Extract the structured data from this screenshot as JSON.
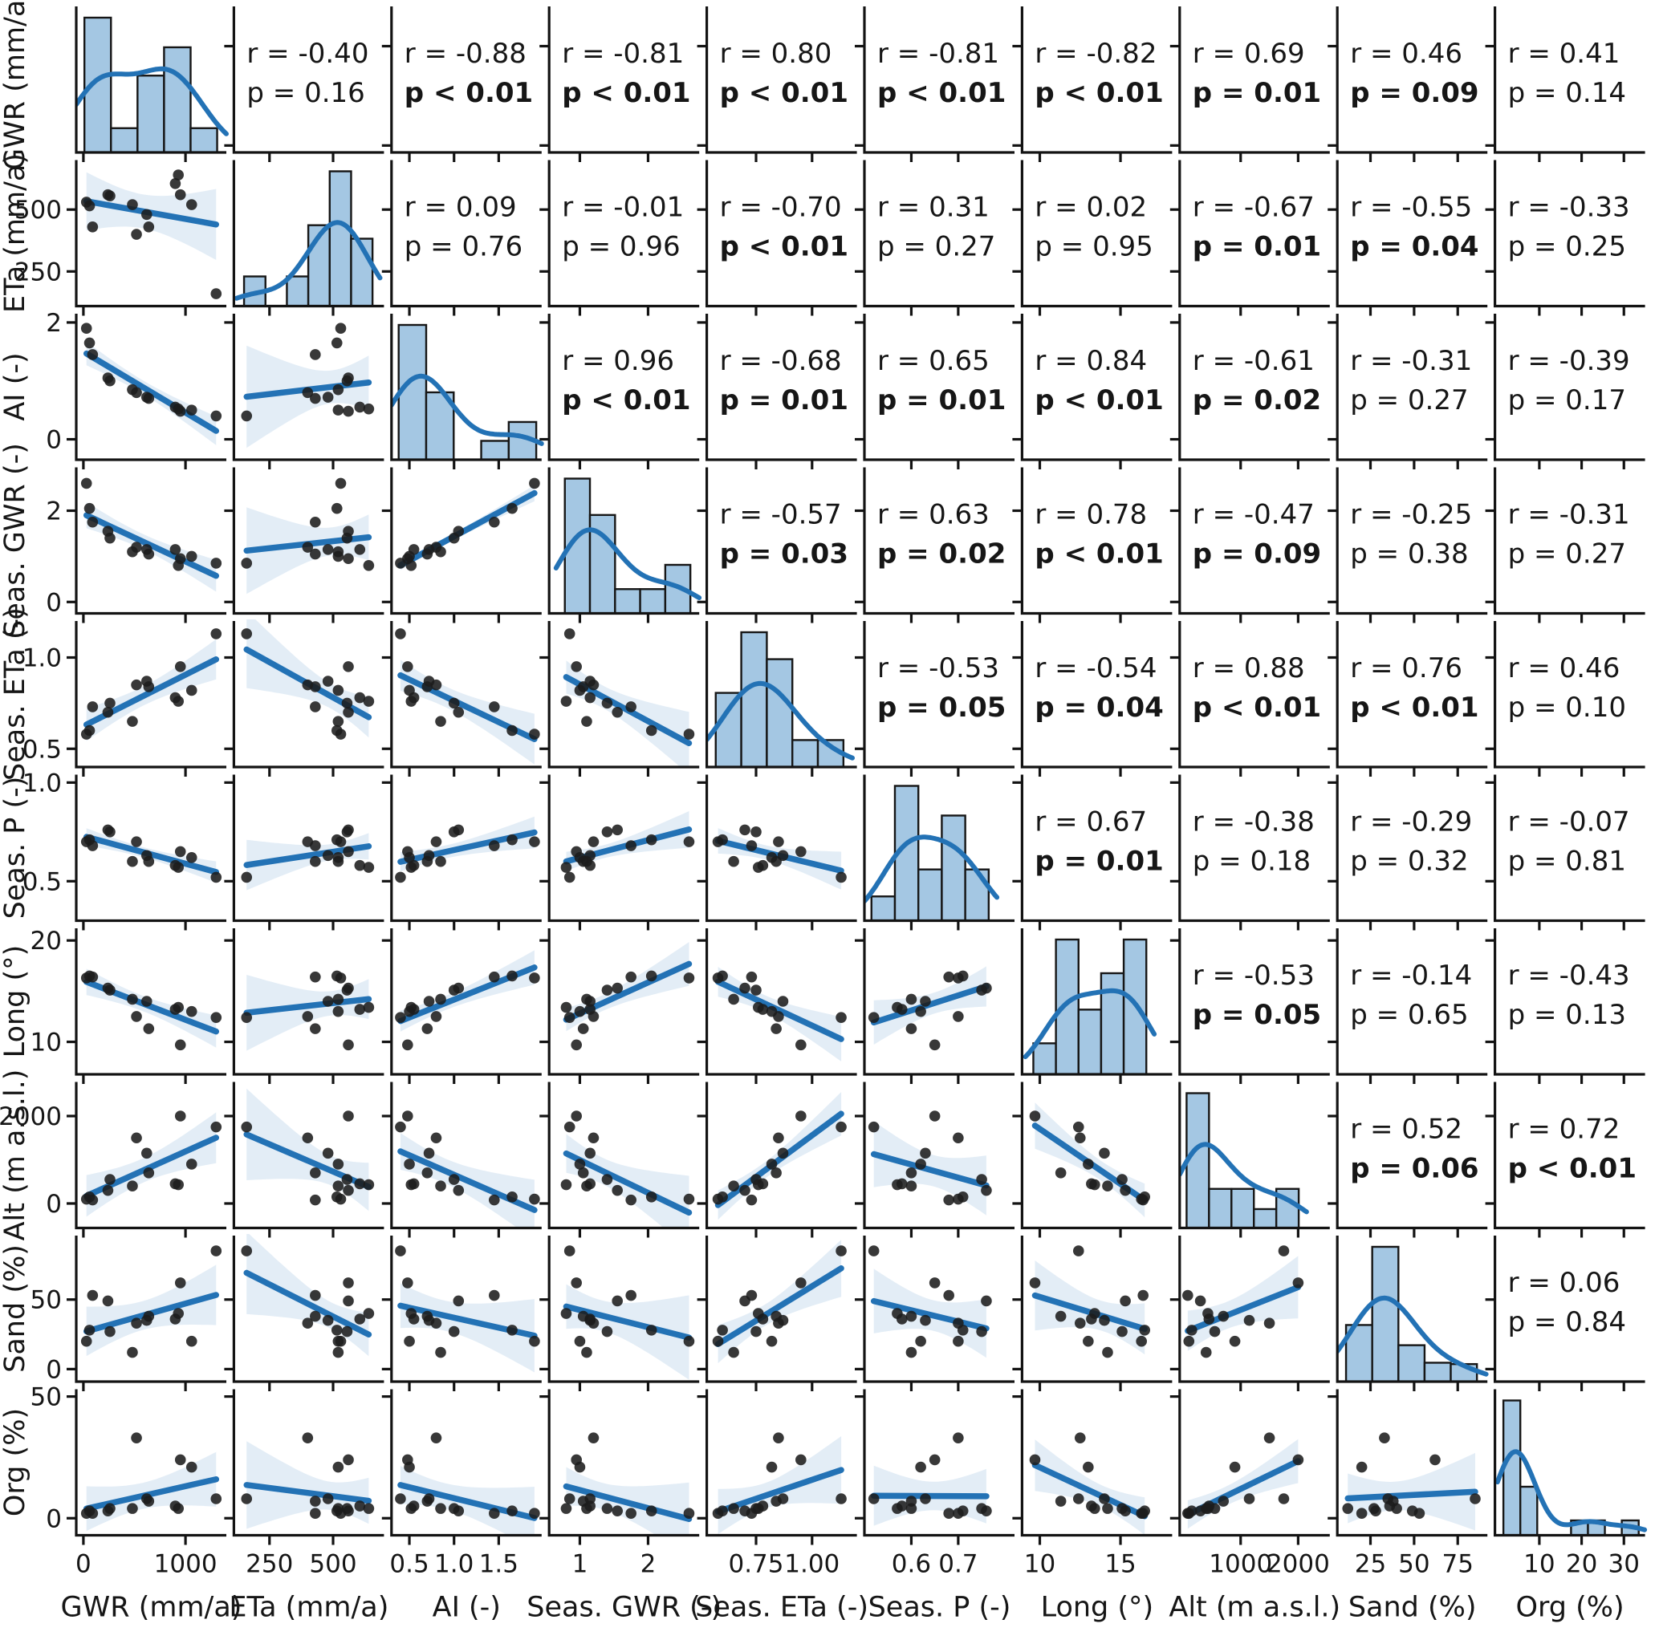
{
  "chart_data": {
    "type": "scatter-matrix",
    "title": "",
    "layout": {
      "grid": "10x10",
      "diagonal": "histogram-with-kde",
      "lower_triangle": "scatter-with-regression-and-ci",
      "upper_triangle": "pearson-r-and-p-text",
      "legend": "none",
      "gridlines": false
    },
    "styles": {
      "line_color": "#2372b5",
      "band_color": "#2776b8",
      "band_opacity": 0.13,
      "hist_fill": "#a4c7e3",
      "hist_edge": "#161616",
      "dot_color": "#1c1c1c",
      "axis_color": "#131313",
      "text_color": "#161616"
    },
    "variables": [
      {
        "key": "GWR",
        "label": "GWR (mm/a)",
        "xlim": [
          -70,
          1400
        ],
        "ylim": [
          -70,
          1400
        ],
        "xticks": [
          {
            "v": 0,
            "t": "0"
          },
          {
            "v": 1000,
            "t": "1000"
          }
        ],
        "yticks": [
          {
            "v": 0,
            "t": "0"
          },
          {
            "v": 1000,
            "t": "1000"
          }
        ],
        "hist": {
          "range": [
            10,
            1310
          ],
          "heights": [
            1.0,
            0.18,
            0.57,
            0.78,
            0.18
          ]
        }
      },
      {
        "key": "ETa",
        "label": "ETa (mm/a)",
        "xlim": [
          110,
          700
        ],
        "ylim": [
          110,
          700
        ],
        "xticks": [
          {
            "v": 250,
            "t": "250"
          },
          {
            "v": 500,
            "t": "500"
          }
        ],
        "yticks": [
          {
            "v": 250,
            "t": "250"
          },
          {
            "v": 500,
            "t": "500"
          }
        ],
        "hist": {
          "range": [
            150,
            655
          ],
          "heights": [
            0.22,
            0,
            0.22,
            0.6,
            1.0,
            0.5
          ]
        }
      },
      {
        "key": "AI",
        "label": "AI (-)",
        "xlim": [
          0.3,
          1.98
        ],
        "ylim": [
          -0.35,
          2.15
        ],
        "xticks": [
          {
            "v": 0.5,
            "t": "0.5"
          },
          {
            "v": 1.0,
            "t": "1.0"
          },
          {
            "v": 1.5,
            "t": "1.5"
          }
        ],
        "yticks": [
          {
            "v": 0,
            "t": "0"
          },
          {
            "v": 2,
            "t": "2"
          }
        ],
        "hist": {
          "range": [
            0.38,
            1.92
          ],
          "heights": [
            1.0,
            0.5,
            0,
            0.14,
            0.28
          ]
        }
      },
      {
        "key": "sGWR",
        "label": "Seas. GWR (-)",
        "xlim": [
          0.55,
          2.75
        ],
        "ylim": [
          -0.25,
          2.95
        ],
        "xticks": [
          {
            "v": 1,
            "t": "1"
          },
          {
            "v": 2,
            "t": "2"
          }
        ],
        "yticks": [
          {
            "v": 0,
            "t": "0"
          },
          {
            "v": 2,
            "t": "2"
          }
        ],
        "hist": {
          "range": [
            0.78,
            2.62
          ],
          "heights": [
            1.0,
            0.73,
            0.18,
            0.18,
            0.36
          ]
        }
      },
      {
        "key": "sETa",
        "label": "Seas. ETa (-)",
        "xlim": [
          0.53,
          1.2
        ],
        "ylim": [
          0.4,
          1.2
        ],
        "xticks": [
          {
            "v": 0.75,
            "t": "0.75"
          },
          {
            "v": 1.0,
            "t": "1.00"
          }
        ],
        "yticks": [
          {
            "v": 0.5,
            "t": "0.5"
          },
          {
            "v": 1.0,
            "t": "1.0"
          }
        ],
        "hist": {
          "range": [
            0.57,
            1.14
          ],
          "heights": [
            0.55,
            1.0,
            0.8,
            0.2,
            0.2
          ]
        }
      },
      {
        "key": "sP",
        "label": "Seas. P (-)",
        "xlim": [
          0.5,
          0.82
        ],
        "ylim": [
          0.3,
          1.04
        ],
        "xticks": [
          {
            "v": 0.6,
            "t": "0.6"
          },
          {
            "v": 0.7,
            "t": "0.7"
          }
        ],
        "yticks": [
          {
            "v": 0.5,
            "t": "0.5"
          },
          {
            "v": 1.0,
            "t": "1.0"
          }
        ],
        "hist": {
          "range": [
            0.515,
            0.765
          ],
          "heights": [
            0.18,
            1.0,
            0.38,
            0.78,
            0.38
          ]
        }
      },
      {
        "key": "Long",
        "label": "Long (°)",
        "xlim": [
          8.9,
          18.2
        ],
        "ylim": [
          6.8,
          21.2
        ],
        "xticks": [
          {
            "v": 10,
            "t": "10"
          },
          {
            "v": 15,
            "t": "15"
          }
        ],
        "yticks": [
          {
            "v": 10,
            "t": "10"
          },
          {
            "v": 20,
            "t": "20"
          }
        ],
        "hist": {
          "range": [
            9.6,
            16.6
          ],
          "heights": [
            0.23,
            1.0,
            0.48,
            0.75,
            1.0
          ]
        }
      },
      {
        "key": "Alt",
        "label": "Alt (m a.s.l.)",
        "xlim": [
          -60,
          2550
        ],
        "ylim": [
          -560,
          2780
        ],
        "xticks": [
          {
            "v": 1000,
            "t": "1000"
          },
          {
            "v": 2000,
            "t": "2000"
          }
        ],
        "yticks": [
          {
            "v": 0,
            "t": "0"
          },
          {
            "v": 2000,
            "t": "2000"
          }
        ],
        "hist": {
          "range": [
            60,
            2010
          ],
          "heights": [
            1.0,
            0.29,
            0.29,
            0.14,
            0.29
          ]
        }
      },
      {
        "key": "Sand",
        "label": "Sand (%)",
        "xlim": [
          6,
          92
        ],
        "ylim": [
          -9,
          96
        ],
        "xticks": [
          {
            "v": 25,
            "t": "25"
          },
          {
            "v": 50,
            "t": "50"
          },
          {
            "v": 75,
            "t": "75"
          }
        ],
        "yticks": [
          {
            "v": 0,
            "t": "0"
          },
          {
            "v": 50,
            "t": "50"
          }
        ],
        "hist": {
          "range": [
            11,
            86
          ],
          "heights": [
            0.42,
            1.0,
            0.27,
            0.14,
            0.13
          ]
        }
      },
      {
        "key": "Org",
        "label": "Org (%)",
        "xlim": [
          -0.5,
          35
        ],
        "ylim": [
          -7,
          53
        ],
        "xticks": [
          {
            "v": 10,
            "t": "10"
          },
          {
            "v": 20,
            "t": "20"
          },
          {
            "v": 30,
            "t": "30"
          }
        ],
        "yticks": [
          {
            "v": 0,
            "t": "0"
          },
          {
            "v": 50,
            "t": "50"
          }
        ],
        "hist": {
          "range": [
            1.5,
            33.5
          ],
          "heights": [
            1.0,
            0.36,
            0,
            0,
            0.11,
            0.11,
            0,
            0.11
          ]
        }
      }
    ],
    "observations": [
      {
        "GWR": 30,
        "ETa": 530,
        "AI": 1.9,
        "sGWR": 2.6,
        "sETa": 0.58,
        "sP": 0.7,
        "Long": 16.3,
        "Alt": 100,
        "Sand": 20,
        "Org": 2
      },
      {
        "GWR": 60,
        "ETa": 515,
        "AI": 1.65,
        "sGWR": 2.05,
        "sETa": 0.6,
        "sP": 0.71,
        "Long": 16.5,
        "Alt": 150,
        "Sand": 28,
        "Org": 3
      },
      {
        "GWR": 90,
        "ETa": 430,
        "AI": 1.45,
        "sGWR": 1.75,
        "sETa": 0.73,
        "sP": 0.68,
        "Long": 16.4,
        "Alt": 80,
        "Sand": 53,
        "Org": 2
      },
      {
        "GWR": 240,
        "ETa": 560,
        "AI": 1.05,
        "sGWR": 1.55,
        "sETa": 0.7,
        "sP": 0.76,
        "Long": 15.3,
        "Alt": 300,
        "Sand": 49,
        "Org": 3
      },
      {
        "GWR": 260,
        "ETa": 555,
        "AI": 1.0,
        "sGWR": 1.4,
        "sETa": 0.75,
        "sP": 0.75,
        "Long": 15.1,
        "Alt": 550,
        "Sand": 27,
        "Org": 4
      },
      {
        "GWR": 480,
        "ETa": 520,
        "AI": 0.85,
        "sGWR": 1.1,
        "sETa": 0.65,
        "sP": 0.6,
        "Long": 14.2,
        "Alt": 400,
        "Sand": 12,
        "Org": 4
      },
      {
        "GWR": 520,
        "ETa": 400,
        "AI": 0.8,
        "sGWR": 1.2,
        "sETa": 0.85,
        "sP": 0.7,
        "Long": 12.5,
        "Alt": 1500,
        "Sand": 33,
        "Org": 33
      },
      {
        "GWR": 620,
        "ETa": 480,
        "AI": 0.72,
        "sGWR": 1.15,
        "sETa": 0.87,
        "sP": 0.63,
        "Long": 14.0,
        "Alt": 1150,
        "Sand": 35,
        "Org": 8
      },
      {
        "GWR": 640,
        "ETa": 430,
        "AI": 0.7,
        "sGWR": 1.05,
        "sETa": 0.84,
        "sP": 0.6,
        "Long": 11.3,
        "Alt": 700,
        "Sand": 38,
        "Org": 7
      },
      {
        "GWR": 900,
        "ETa": 605,
        "AI": 0.55,
        "sGWR": 1.15,
        "sETa": 0.78,
        "sP": 0.58,
        "Long": 13.2,
        "Alt": 450,
        "Sand": 36,
        "Org": 5
      },
      {
        "GWR": 930,
        "ETa": 640,
        "AI": 0.52,
        "sGWR": 0.8,
        "sETa": 0.76,
        "sP": 0.57,
        "Long": 13.4,
        "Alt": 430,
        "Sand": 40,
        "Org": 4
      },
      {
        "GWR": 950,
        "ETa": 560,
        "AI": 0.48,
        "sGWR": 0.95,
        "sETa": 0.95,
        "sP": 0.65,
        "Long": 9.7,
        "Alt": 2000,
        "Sand": 62,
        "Org": 24
      },
      {
        "GWR": 1060,
        "ETa": 520,
        "AI": 0.5,
        "sGWR": 1.0,
        "sETa": 0.82,
        "sP": 0.62,
        "Long": 13.0,
        "Alt": 900,
        "Sand": 20,
        "Org": 21
      },
      {
        "GWR": 1300,
        "ETa": 160,
        "AI": 0.4,
        "sGWR": 0.85,
        "sETa": 1.13,
        "sP": 0.52,
        "Long": 12.4,
        "Alt": 1750,
        "Sand": 85,
        "Org": 8
      }
    ],
    "correlations": [
      {
        "row": "GWR",
        "col": "ETa",
        "r_label": "r = -0.40",
        "p_label": "p = 0.16",
        "significant": false
      },
      {
        "row": "GWR",
        "col": "AI",
        "r_label": "r = -0.88",
        "p_label": "p < 0.01",
        "significant": true
      },
      {
        "row": "GWR",
        "col": "sGWR",
        "r_label": "r = -0.81",
        "p_label": "p < 0.01",
        "significant": true
      },
      {
        "row": "GWR",
        "col": "sETa",
        "r_label": "r = 0.80",
        "p_label": "p < 0.01",
        "significant": true
      },
      {
        "row": "GWR",
        "col": "sP",
        "r_label": "r = -0.81",
        "p_label": "p < 0.01",
        "significant": true
      },
      {
        "row": "GWR",
        "col": "Long",
        "r_label": "r = -0.82",
        "p_label": "p < 0.01",
        "significant": true
      },
      {
        "row": "GWR",
        "col": "Alt",
        "r_label": "r = 0.69",
        "p_label": "p = 0.01",
        "significant": true
      },
      {
        "row": "GWR",
        "col": "Sand",
        "r_label": "r = 0.46",
        "p_label": "p = 0.09",
        "significant": true
      },
      {
        "row": "GWR",
        "col": "Org",
        "r_label": "r = 0.41",
        "p_label": "p = 0.14",
        "significant": false
      },
      {
        "row": "ETa",
        "col": "AI",
        "r_label": "r = 0.09",
        "p_label": "p = 0.76",
        "significant": false
      },
      {
        "row": "ETa",
        "col": "sGWR",
        "r_label": "r = -0.01",
        "p_label": "p = 0.96",
        "significant": false
      },
      {
        "row": "ETa",
        "col": "sETa",
        "r_label": "r = -0.70",
        "p_label": "p < 0.01",
        "significant": true
      },
      {
        "row": "ETa",
        "col": "sP",
        "r_label": "r = 0.31",
        "p_label": "p = 0.27",
        "significant": false
      },
      {
        "row": "ETa",
        "col": "Long",
        "r_label": "r = 0.02",
        "p_label": "p = 0.95",
        "significant": false
      },
      {
        "row": "ETa",
        "col": "Alt",
        "r_label": "r = -0.67",
        "p_label": "p = 0.01",
        "significant": true
      },
      {
        "row": "ETa",
        "col": "Sand",
        "r_label": "r = -0.55",
        "p_label": "p = 0.04",
        "significant": true
      },
      {
        "row": "ETa",
        "col": "Org",
        "r_label": "r = -0.33",
        "p_label": "p = 0.25",
        "significant": false
      },
      {
        "row": "AI",
        "col": "sGWR",
        "r_label": "r = 0.96",
        "p_label": "p < 0.01",
        "significant": true
      },
      {
        "row": "AI",
        "col": "sETa",
        "r_label": "r = -0.68",
        "p_label": "p = 0.01",
        "significant": true
      },
      {
        "row": "AI",
        "col": "sP",
        "r_label": "r = 0.65",
        "p_label": "p = 0.01",
        "significant": true
      },
      {
        "row": "AI",
        "col": "Long",
        "r_label": "r = 0.84",
        "p_label": "p < 0.01",
        "significant": true
      },
      {
        "row": "AI",
        "col": "Alt",
        "r_label": "r = -0.61",
        "p_label": "p = 0.02",
        "significant": true
      },
      {
        "row": "AI",
        "col": "Sand",
        "r_label": "r = -0.31",
        "p_label": "p = 0.27",
        "significant": false
      },
      {
        "row": "AI",
        "col": "Org",
        "r_label": "r = -0.39",
        "p_label": "p = 0.17",
        "significant": false
      },
      {
        "row": "sGWR",
        "col": "sETa",
        "r_label": "r = -0.57",
        "p_label": "p = 0.03",
        "significant": true
      },
      {
        "row": "sGWR",
        "col": "sP",
        "r_label": "r = 0.63",
        "p_label": "p = 0.02",
        "significant": true
      },
      {
        "row": "sGWR",
        "col": "Long",
        "r_label": "r = 0.78",
        "p_label": "p < 0.01",
        "significant": true
      },
      {
        "row": "sGWR",
        "col": "Alt",
        "r_label": "r = -0.47",
        "p_label": "p = 0.09",
        "significant": true
      },
      {
        "row": "sGWR",
        "col": "Sand",
        "r_label": "r = -0.25",
        "p_label": "p = 0.38",
        "significant": false
      },
      {
        "row": "sGWR",
        "col": "Org",
        "r_label": "r = -0.31",
        "p_label": "p = 0.27",
        "significant": false
      },
      {
        "row": "sETa",
        "col": "sP",
        "r_label": "r = -0.53",
        "p_label": "p = 0.05",
        "significant": true
      },
      {
        "row": "sETa",
        "col": "Long",
        "r_label": "r = -0.54",
        "p_label": "p = 0.04",
        "significant": true
      },
      {
        "row": "sETa",
        "col": "Alt",
        "r_label": "r = 0.88",
        "p_label": "p < 0.01",
        "significant": true
      },
      {
        "row": "sETa",
        "col": "Sand",
        "r_label": "r = 0.76",
        "p_label": "p < 0.01",
        "significant": true
      },
      {
        "row": "sETa",
        "col": "Org",
        "r_label": "r = 0.46",
        "p_label": "p = 0.10",
        "significant": false
      },
      {
        "row": "sP",
        "col": "Long",
        "r_label": "r = 0.67",
        "p_label": "p = 0.01",
        "significant": true
      },
      {
        "row": "sP",
        "col": "Alt",
        "r_label": "r = -0.38",
        "p_label": "p = 0.18",
        "significant": false
      },
      {
        "row": "sP",
        "col": "Sand",
        "r_label": "r = -0.29",
        "p_label": "p = 0.32",
        "significant": false
      },
      {
        "row": "sP",
        "col": "Org",
        "r_label": "r = -0.07",
        "p_label": "p = 0.81",
        "significant": false
      },
      {
        "row": "Long",
        "col": "Alt",
        "r_label": "r = -0.53",
        "p_label": "p = 0.05",
        "significant": true
      },
      {
        "row": "Long",
        "col": "Sand",
        "r_label": "r = -0.14",
        "p_label": "p = 0.65",
        "significant": false
      },
      {
        "row": "Long",
        "col": "Org",
        "r_label": "r = -0.43",
        "p_label": "p = 0.13",
        "significant": false
      },
      {
        "row": "Alt",
        "col": "Sand",
        "r_label": "r = 0.52",
        "p_label": "p = 0.06",
        "significant": true
      },
      {
        "row": "Alt",
        "col": "Org",
        "r_label": "r = 0.72",
        "p_label": "p < 0.01",
        "significant": true
      },
      {
        "row": "Sand",
        "col": "Org",
        "r_label": "r = 0.06",
        "p_label": "p = 0.84",
        "significant": false
      }
    ]
  }
}
